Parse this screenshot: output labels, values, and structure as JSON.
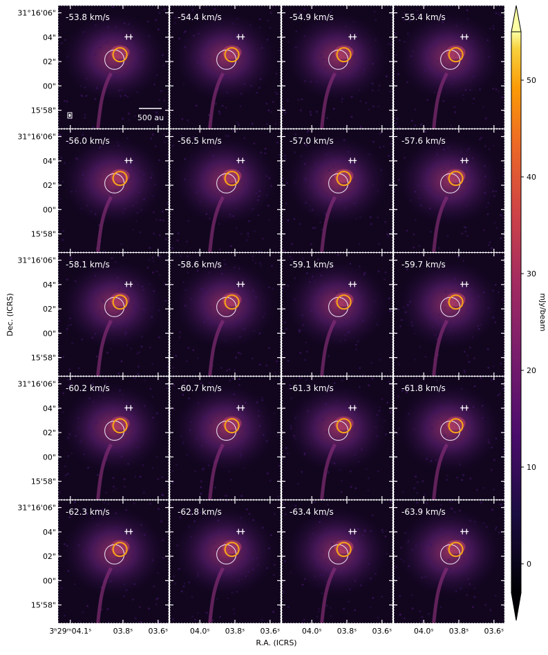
{
  "chart_data": {
    "type": "heatmap",
    "title": "",
    "xlabel": "R.A. (ICRS)",
    "ylabel": "Dec. (ICRS)",
    "colorbar": {
      "label": "mJy/beam",
      "ticks": [
        0,
        10,
        20,
        30,
        40,
        50
      ],
      "range": [
        -3,
        55
      ],
      "extend": "both",
      "colormap": "inferno"
    },
    "y_tick_labels": [
      "31°16'06\"",
      "04\"",
      "02\"",
      "00\"",
      "15'58\""
    ],
    "y_tick_values_arcsec": [
      6,
      4,
      2,
      0,
      -2
    ],
    "x_tick_labels_first": [
      "3ʰ29ᵐ04.1ˢ",
      "03.8ˢ",
      "03.6ˢ"
    ],
    "x_tick_labels_other": [
      "04.0ˢ",
      "03.8ˢ",
      "03.6ˢ"
    ],
    "x_tick_values_sec": [
      4.1,
      3.8,
      3.6
    ],
    "x_tick_values_sec_other": [
      4.0,
      3.8,
      3.6
    ],
    "scale_bar_label": "500 au",
    "velocity_unit": "km/s",
    "velocities": [
      "-53.8 km/s",
      "-54.4 km/s",
      "-54.9 km/s",
      "-55.4 km/s",
      "-56.0 km/s",
      "-56.5 km/s",
      "-57.0 km/s",
      "-57.6 km/s",
      "-58.1 km/s",
      "-58.6 km/s",
      "-59.1 km/s",
      "-59.7 km/s",
      "-60.2 km/s",
      "-60.7 km/s",
      "-61.3 km/s",
      "-61.8 km/s",
      "-62.3 km/s",
      "-62.8 km/s",
      "-63.4 km/s",
      "-63.9 km/s"
    ],
    "grid_layout": {
      "rows": 5,
      "cols": 4
    },
    "colors": {
      "background": "#12061f",
      "emission": "#6a2380",
      "bright_ring": "#f7a11a",
      "faint_ring": "#e6dcf0",
      "markers": "#ffffff"
    }
  }
}
